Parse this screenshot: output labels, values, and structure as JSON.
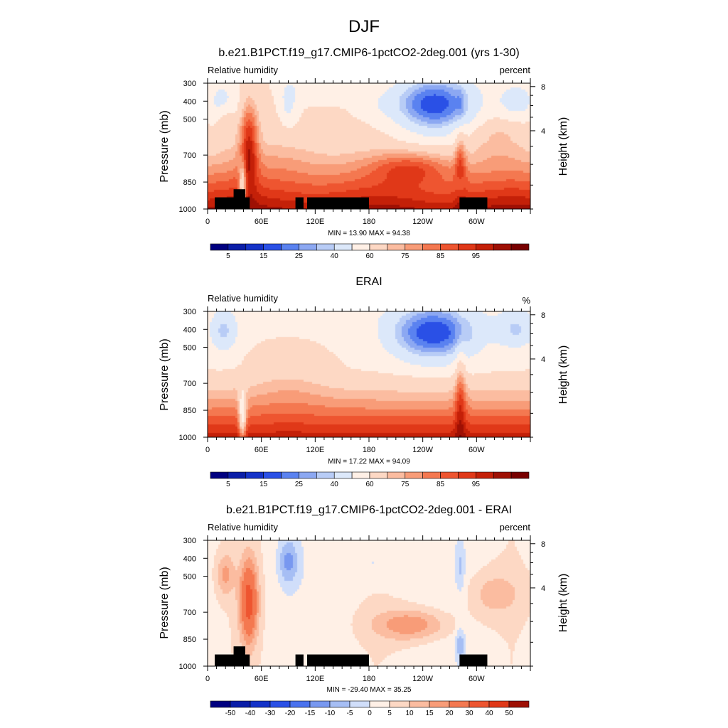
{
  "figure_title": "DJF",
  "chart_data": [
    {
      "type": "heatmap",
      "title": "b.e21.B1PCT.f19_g17.CMIP6-1pctCO2-2deg.001 (yrs 1-30)",
      "left_label": "Relative humidity",
      "right_label": "percent",
      "ylabel": "Pressure (mb)",
      "y2label": "Height (km)",
      "xlabel": "",
      "x_ticks": [
        "0",
        "60E",
        "120E",
        "180",
        "120W",
        "60W"
      ],
      "x_tick_values": [
        0,
        60,
        120,
        180,
        240,
        300
      ],
      "xlim": [
        0,
        360
      ],
      "y_ticks": [
        "300",
        "400",
        "500",
        "700",
        "850",
        "1000"
      ],
      "y_tick_values": [
        300,
        400,
        500,
        700,
        850,
        1000
      ],
      "ylim": [
        300,
        1000
      ],
      "y2_ticks": [
        "8",
        "4"
      ],
      "y2_tick_values": [
        8,
        4
      ],
      "stats": "MIN =  13.90  MAX =  94.38",
      "colorbar": {
        "labels": [
          "5",
          "15",
          "25",
          "40",
          "60",
          "75",
          "85",
          "95"
        ],
        "colors": [
          "#000080",
          "#0a1ea8",
          "#1432c8",
          "#2a50e6",
          "#5a82f0",
          "#8ca8f2",
          "#b8ccf6",
          "#dce8fa",
          "#fff0e6",
          "#fdd8c4",
          "#fbbca0",
          "#f89c78",
          "#f47850",
          "#ee5530",
          "#e03818",
          "#c42008",
          "#9e1004",
          "#780000"
        ]
      },
      "field": "model",
      "land_mask": [
        [
          8,
          42,
          935
        ],
        [
          29,
          42,
          890
        ],
        [
          42,
          47,
          935
        ],
        [
          98,
          107,
          935
        ],
        [
          111,
          180,
          935
        ],
        [
          281,
          312,
          935
        ]
      ]
    },
    {
      "type": "heatmap",
      "title": "ERAI",
      "left_label": "Relative humidity",
      "right_label": "%",
      "ylabel": "Pressure (mb)",
      "y2label": "Height (km)",
      "xlabel": "",
      "x_ticks": [
        "0",
        "60E",
        "120E",
        "180",
        "120W",
        "60W"
      ],
      "x_tick_values": [
        0,
        60,
        120,
        180,
        240,
        300
      ],
      "xlim": [
        0,
        360
      ],
      "y_ticks": [
        "300",
        "400",
        "500",
        "700",
        "850",
        "1000"
      ],
      "y_tick_values": [
        300,
        400,
        500,
        700,
        850,
        1000
      ],
      "ylim": [
        300,
        1000
      ],
      "y2_ticks": [
        "8",
        "4"
      ],
      "y2_tick_values": [
        8,
        4
      ],
      "stats": "MIN =  17.22  MAX =  94.09",
      "colorbar": {
        "labels": [
          "5",
          "15",
          "25",
          "40",
          "60",
          "75",
          "85",
          "95"
        ],
        "colors": [
          "#000080",
          "#0a1ea8",
          "#1432c8",
          "#2a50e6",
          "#5a82f0",
          "#8ca8f2",
          "#b8ccf6",
          "#dce8fa",
          "#fff0e6",
          "#fdd8c4",
          "#fbbca0",
          "#f89c78",
          "#f47850",
          "#ee5530",
          "#e03818",
          "#c42008",
          "#9e1004",
          "#780000"
        ]
      },
      "field": "obs",
      "land_mask": []
    },
    {
      "type": "heatmap",
      "title": "b.e21.B1PCT.f19_g17.CMIP6-1pctCO2-2deg.001 - ERAI",
      "left_label": "Relative humidity",
      "right_label": "percent",
      "ylabel": "Pressure (mb)",
      "y2label": "Height (km)",
      "xlabel": "",
      "x_ticks": [
        "0",
        "60E",
        "120E",
        "180",
        "120W",
        "60W"
      ],
      "x_tick_values": [
        0,
        60,
        120,
        180,
        240,
        300
      ],
      "xlim": [
        0,
        360
      ],
      "y_ticks": [
        "300",
        "400",
        "500",
        "700",
        "850",
        "1000"
      ],
      "y_tick_values": [
        300,
        400,
        500,
        700,
        850,
        1000
      ],
      "ylim": [
        300,
        1000
      ],
      "y2_ticks": [
        "8",
        "4"
      ],
      "y2_tick_values": [
        8,
        4
      ],
      "stats": "MIN = -29.40  MAX =  35.25",
      "colorbar": {
        "labels": [
          "-50",
          "-40",
          "-30",
          "-20",
          "-15",
          "-10",
          "-5",
          "0",
          "5",
          "10",
          "15",
          "20",
          "30",
          "40",
          "50"
        ],
        "colors": [
          "#000080",
          "#0a1ea8",
          "#1432c8",
          "#2a50e6",
          "#4a72ee",
          "#7898f0",
          "#a6bef4",
          "#d0defa",
          "#fff0e6",
          "#fdd8c4",
          "#fbbca0",
          "#f89c78",
          "#f47850",
          "#ee5530",
          "#e03818",
          "#9e1004"
        ]
      },
      "field": "diff",
      "land_mask": [
        [
          8,
          42,
          935
        ],
        [
          29,
          42,
          890
        ],
        [
          42,
          47,
          935
        ],
        [
          98,
          107,
          935
        ],
        [
          111,
          180,
          935
        ],
        [
          281,
          312,
          935
        ]
      ]
    }
  ]
}
